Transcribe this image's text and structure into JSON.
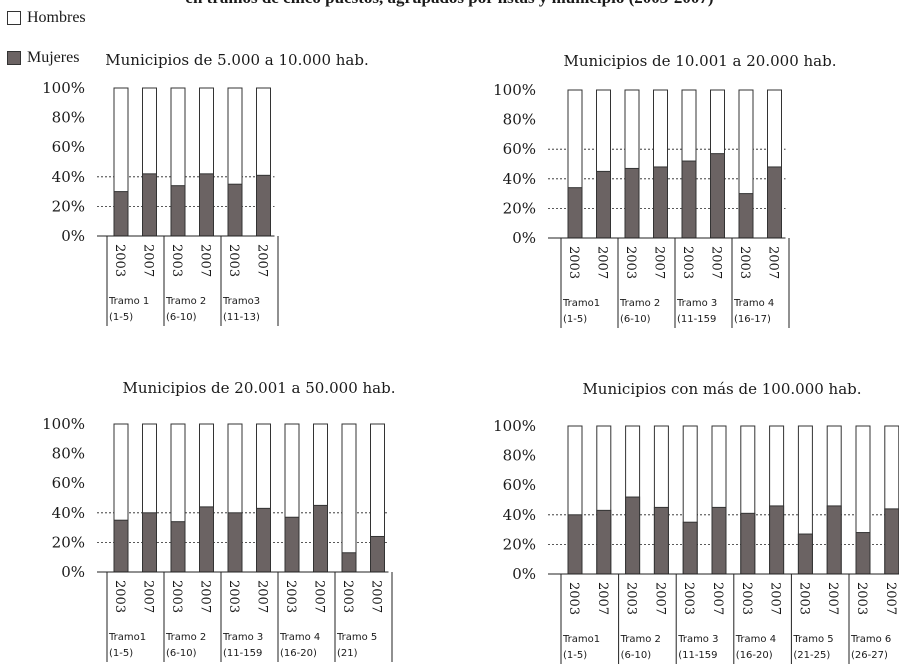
{
  "title": "en tramos de cinco puestos, agrupados por listas y municipio (2003-2007)",
  "legend": {
    "hombres": "Hombres",
    "mujeres": "Mujeres"
  },
  "colors": {
    "mujeres": "#6b6363",
    "hombres": "#ffffff",
    "stroke": "#333333"
  },
  "chart_data": [
    {
      "type": "bar",
      "title": "Municipios de 5.000 a 10.000 hab.",
      "y_ticks": [
        "0%",
        "20%",
        "40%",
        "60%",
        "80%",
        "100%"
      ],
      "ylim": [
        0,
        100
      ],
      "dashed_gridlines": [
        20,
        40
      ],
      "years": [
        "2003",
        "2007"
      ],
      "groups": [
        {
          "label1": "Tramo 1",
          "label2": "(1-5)",
          "values": [
            30,
            42
          ]
        },
        {
          "label1": "Tramo 2",
          "label2": "(6-10)",
          "values": [
            34,
            42
          ]
        },
        {
          "label1": "Tramo3",
          "label2": "(11-13)",
          "values": [
            35,
            41
          ]
        }
      ]
    },
    {
      "type": "bar",
      "title": "Municipios de 10.001 a 20.000 hab.",
      "y_ticks": [
        "0%",
        "20%",
        "40%",
        "60%",
        "80%",
        "100%"
      ],
      "ylim": [
        0,
        100
      ],
      "dashed_gridlines": [
        20,
        40,
        60
      ],
      "years": [
        "2003",
        "2007"
      ],
      "groups": [
        {
          "label1": "Tramo1",
          "label2": "(1-5)",
          "values": [
            34,
            45
          ]
        },
        {
          "label1": "Tramo 2",
          "label2": "(6-10)",
          "values": [
            47,
            48
          ]
        },
        {
          "label1": "Tramo 3",
          "label2": "(11-159",
          "values": [
            52,
            57
          ]
        },
        {
          "label1": "Tramo 4",
          "label2": "(16-17)",
          "values": [
            30,
            48
          ]
        }
      ]
    },
    {
      "type": "bar",
      "title": "Municipios de 20.001 a 50.000 hab.",
      "y_ticks": [
        "0%",
        "20%",
        "40%",
        "60%",
        "80%",
        "100%"
      ],
      "ylim": [
        0,
        100
      ],
      "dashed_gridlines": [
        20,
        40
      ],
      "years": [
        "2003",
        "2007"
      ],
      "groups": [
        {
          "label1": "Tramo1",
          "label2": "(1-5)",
          "values": [
            35,
            40
          ]
        },
        {
          "label1": "Tramo 2",
          "label2": "(6-10)",
          "values": [
            34,
            44
          ]
        },
        {
          "label1": "Tramo 3",
          "label2": "(11-159",
          "values": [
            40,
            43
          ]
        },
        {
          "label1": "Tramo 4",
          "label2": "(16-20)",
          "values": [
            37,
            45
          ]
        },
        {
          "label1": "Tramo 5",
          "label2": "(21)",
          "values": [
            13,
            24
          ]
        }
      ]
    },
    {
      "type": "bar",
      "title": "Municipios con más de 100.000 hab.",
      "y_ticks": [
        "0%",
        "20%",
        "40%",
        "60%",
        "80%",
        "100%"
      ],
      "ylim": [
        0,
        100
      ],
      "dashed_gridlines": [
        20,
        40
      ],
      "years": [
        "2003",
        "2007"
      ],
      "groups": [
        {
          "label1": "Tramo1",
          "label2": "(1-5)",
          "values": [
            40,
            43
          ]
        },
        {
          "label1": "Tramo 2",
          "label2": "(6-10)",
          "values": [
            52,
            45
          ]
        },
        {
          "label1": "Tramo 3",
          "label2": "(11-159",
          "values": [
            35,
            45
          ]
        },
        {
          "label1": "Tramo 4",
          "label2": "(16-20)",
          "values": [
            41,
            46
          ]
        },
        {
          "label1": "Tramo 5",
          "label2": "(21-25)",
          "values": [
            27,
            46
          ]
        },
        {
          "label1": "Tramo 6",
          "label2": "(26-27)",
          "values": [
            28,
            44
          ]
        }
      ]
    }
  ]
}
